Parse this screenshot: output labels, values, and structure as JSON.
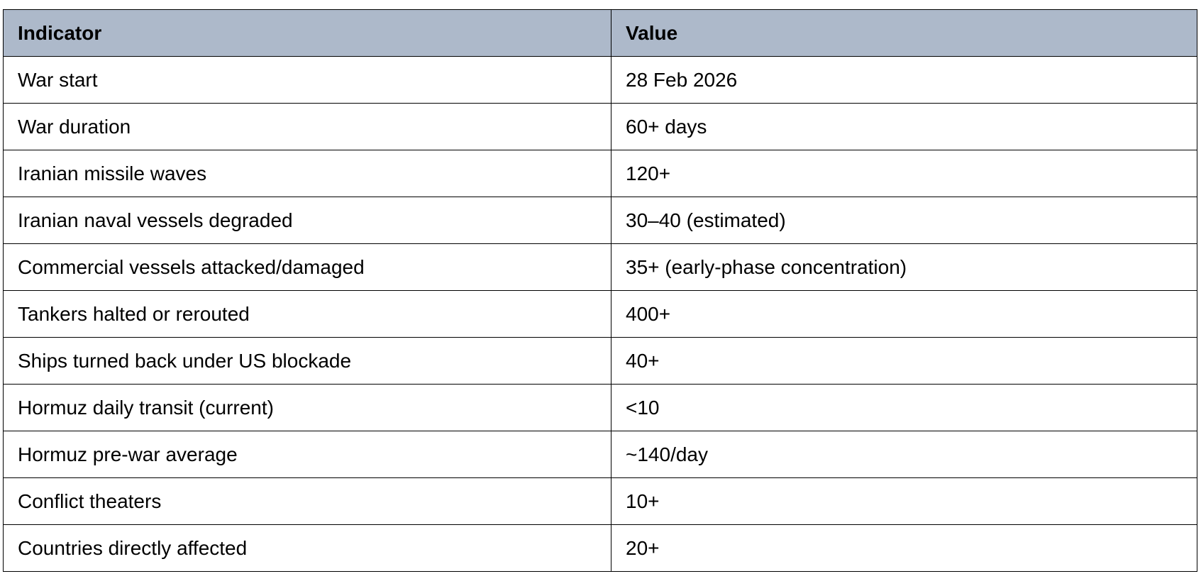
{
  "table": {
    "header": [
      "Indicator",
      "Value"
    ],
    "rows": [
      [
        "War start",
        "28 Feb 2026"
      ],
      [
        "War duration",
        "60+ days"
      ],
      [
        "Iranian missile waves",
        "120+"
      ],
      [
        "Iranian naval vessels degraded",
        "30–40 (estimated)"
      ],
      [
        "Commercial vessels attacked/damaged",
        "35+ (early-phase concentration)"
      ],
      [
        "Tankers halted or rerouted",
        "400+"
      ],
      [
        "Ships turned back under US blockade",
        "40+"
      ],
      [
        "Hormuz daily transit (current)",
        "<10"
      ],
      [
        "Hormuz pre-war average",
        "~140/day"
      ],
      [
        "Conflict theaters",
        "10+"
      ],
      [
        "Countries directly affected",
        "20+"
      ]
    ]
  }
}
